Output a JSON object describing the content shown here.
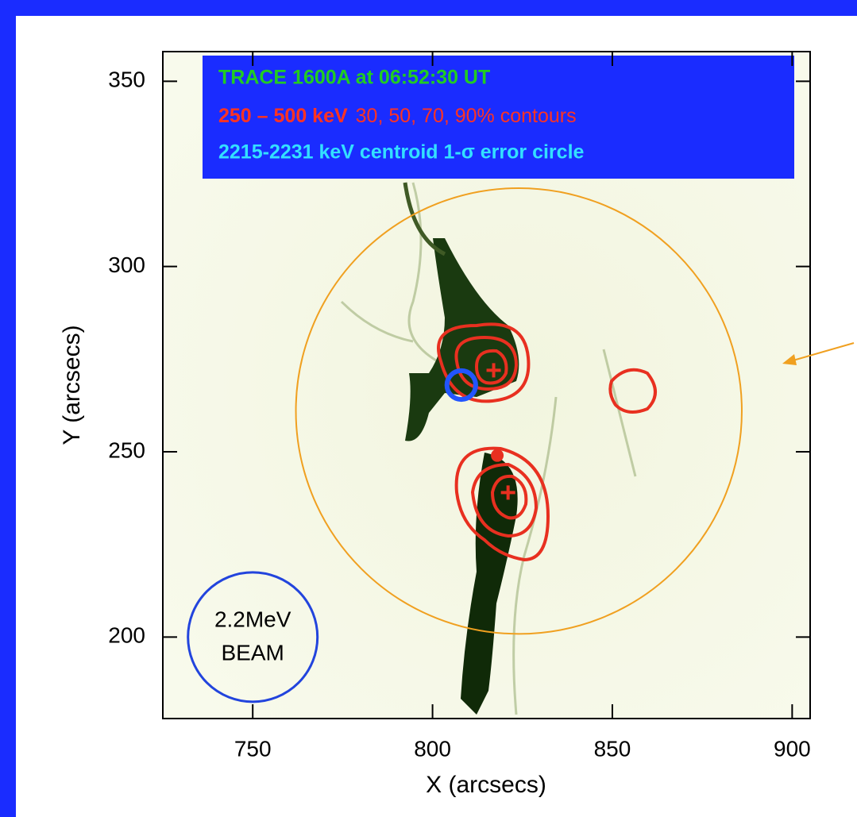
{
  "chart_data": {
    "type": "image",
    "xlabel": "X (arcsecs)",
    "ylabel": "Y (arcsecs)",
    "xlim": [
      725,
      905
    ],
    "ylim": [
      178,
      358
    ],
    "xticks": [
      750,
      800,
      850,
      900
    ],
    "yticks": [
      200,
      250,
      300,
      350
    ],
    "legend": {
      "line1": "TRACE 1600A  at  06:52:30 UT",
      "line2_bold": "250 – 500 keV",
      "line2_rest": "30, 50, 70, 90% contours",
      "line3": "2215-2231 keV centroid   1-σ error circle"
    },
    "beam": {
      "x": 750,
      "y": 200,
      "r": 18,
      "color": "#2244dd",
      "label1": "2.2MeV",
      "label2": "BEAM"
    },
    "error_circle": {
      "x": 824,
      "y": 261,
      "r": 62,
      "color": "#f0a020"
    },
    "centroid": {
      "x": 808,
      "y": 268,
      "r": 4,
      "color": "#2255ff"
    },
    "crosses": {
      "x": [
        817,
        821
      ],
      "y": [
        272,
        239
      ],
      "color": "#e83020"
    },
    "dot": {
      "x": 818,
      "y": 249,
      "color": "#e83020"
    }
  }
}
